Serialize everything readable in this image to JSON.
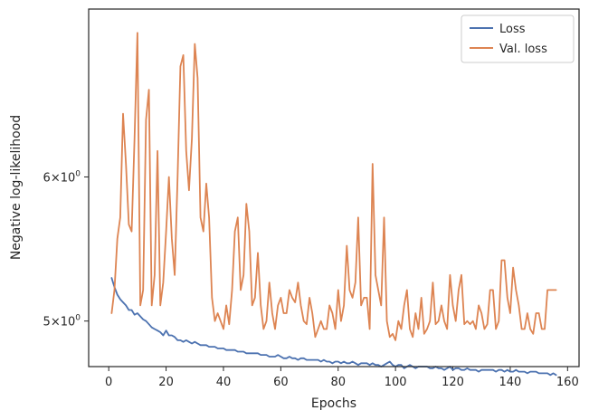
{
  "chart_data": {
    "type": "line",
    "title": "",
    "xlabel": "Epochs",
    "ylabel": "Negative log-likelihood",
    "yscale": "log",
    "xlim": [
      -7,
      164
    ],
    "ylim": [
      4.72,
      7.42
    ],
    "xticks": [
      0,
      20,
      40,
      60,
      80,
      100,
      120,
      140,
      160
    ],
    "yticks": [
      {
        "value": 5,
        "base": "5",
        "mult": "×",
        "ten": "10",
        "exp": "0"
      },
      {
        "value": 6,
        "base": "6",
        "mult": "×",
        "ten": "10",
        "exp": "0"
      }
    ],
    "grid": false,
    "legend_position": "top-right",
    "series": [
      {
        "name": "Loss",
        "color": "#4c72b0",
        "x": [
          1,
          2,
          3,
          4,
          5,
          6,
          7,
          8,
          9,
          10,
          11,
          12,
          13,
          14,
          15,
          16,
          17,
          18,
          19,
          20,
          21,
          22,
          23,
          24,
          25,
          26,
          27,
          28,
          29,
          30,
          31,
          32,
          33,
          34,
          35,
          36,
          37,
          38,
          39,
          40,
          41,
          42,
          43,
          44,
          45,
          46,
          47,
          48,
          49,
          50,
          51,
          52,
          53,
          54,
          55,
          56,
          57,
          58,
          59,
          60,
          61,
          62,
          63,
          64,
          65,
          66,
          67,
          68,
          69,
          70,
          71,
          72,
          73,
          74,
          75,
          76,
          77,
          78,
          79,
          80,
          81,
          82,
          83,
          84,
          85,
          86,
          87,
          88,
          89,
          90,
          91,
          92,
          93,
          94,
          95,
          96,
          97,
          98,
          99,
          100,
          101,
          102,
          103,
          104,
          105,
          106,
          107,
          108,
          109,
          110,
          111,
          112,
          113,
          114,
          115,
          116,
          117,
          118,
          119,
          120,
          121,
          122,
          123,
          124,
          125,
          126,
          127,
          128,
          129,
          130,
          131,
          132,
          133,
          134,
          135,
          136,
          137,
          138,
          139,
          140,
          141,
          142,
          143,
          144,
          145,
          146,
          147,
          148,
          149,
          150,
          151,
          152,
          153,
          154,
          155,
          156
        ],
        "y": [
          5.28,
          5.22,
          5.17,
          5.14,
          5.12,
          5.1,
          5.07,
          5.07,
          5.04,
          5.05,
          5.03,
          5.01,
          5.0,
          4.98,
          4.96,
          4.95,
          4.94,
          4.93,
          4.91,
          4.94,
          4.91,
          4.91,
          4.9,
          4.88,
          4.88,
          4.87,
          4.88,
          4.87,
          4.86,
          4.87,
          4.86,
          4.85,
          4.85,
          4.85,
          4.84,
          4.84,
          4.84,
          4.83,
          4.83,
          4.83,
          4.82,
          4.82,
          4.82,
          4.82,
          4.81,
          4.81,
          4.81,
          4.8,
          4.8,
          4.8,
          4.8,
          4.8,
          4.79,
          4.79,
          4.79,
          4.78,
          4.78,
          4.78,
          4.79,
          4.78,
          4.77,
          4.77,
          4.78,
          4.77,
          4.77,
          4.76,
          4.77,
          4.77,
          4.76,
          4.76,
          4.76,
          4.76,
          4.76,
          4.75,
          4.76,
          4.75,
          4.75,
          4.74,
          4.75,
          4.75,
          4.74,
          4.75,
          4.74,
          4.74,
          4.75,
          4.74,
          4.73,
          4.74,
          4.74,
          4.74,
          4.73,
          4.74,
          4.73,
          4.73,
          4.72,
          4.73,
          4.74,
          4.75,
          4.73,
          4.72,
          4.73,
          4.73,
          4.71,
          4.72,
          4.73,
          4.72,
          4.71,
          4.72,
          4.72,
          4.72,
          4.72,
          4.71,
          4.71,
          4.72,
          4.71,
          4.71,
          4.7,
          4.71,
          4.72,
          4.7,
          4.71,
          4.71,
          4.7,
          4.7,
          4.71,
          4.7,
          4.7,
          4.7,
          4.69,
          4.7,
          4.7,
          4.7,
          4.7,
          4.7,
          4.69,
          4.7,
          4.7,
          4.69,
          4.7,
          4.69,
          4.69,
          4.7,
          4.69,
          4.69,
          4.69,
          4.68,
          4.69,
          4.69,
          4.69,
          4.68,
          4.68,
          4.68,
          4.68,
          4.67,
          4.68,
          4.67
        ],
        "y_note": "",
        "y_display": []
      },
      {
        "name": "Val. loss",
        "color": "#dd8452",
        "x": [
          1,
          2,
          3,
          4,
          5,
          6,
          7,
          8,
          9,
          10,
          11,
          12,
          13,
          14,
          15,
          16,
          17,
          18,
          19,
          20,
          21,
          22,
          23,
          24,
          25,
          26,
          27,
          28,
          29,
          30,
          31,
          32,
          33,
          34,
          35,
          36,
          37,
          38,
          39,
          40,
          41,
          42,
          43,
          44,
          45,
          46,
          47,
          48,
          49,
          50,
          51,
          52,
          53,
          54,
          55,
          56,
          57,
          58,
          59,
          60,
          61,
          62,
          63,
          64,
          65,
          66,
          67,
          68,
          69,
          70,
          71,
          72,
          73,
          74,
          75,
          76,
          77,
          78,
          79,
          80,
          81,
          82,
          83,
          84,
          85,
          86,
          87,
          88,
          89,
          90,
          91,
          92,
          93,
          94,
          95,
          96,
          97,
          98,
          99,
          100,
          101,
          102,
          103,
          104,
          105,
          106,
          107,
          108,
          109,
          110,
          111,
          112,
          113,
          114,
          115,
          116,
          117,
          118,
          119,
          120,
          121,
          122,
          123,
          124,
          125,
          126,
          127,
          128,
          129,
          130,
          131,
          132,
          133,
          134,
          135,
          136,
          137,
          138,
          139,
          140,
          141,
          142,
          143,
          144,
          145,
          146,
          147,
          148,
          149,
          150,
          151,
          152,
          153,
          154,
          155,
          156
        ],
        "y": [
          5.05,
          5.2,
          5.55,
          5.7,
          6.5,
          6.1,
          5.65,
          5.6,
          6.3,
          7.2,
          5.1,
          5.2,
          6.45,
          6.7,
          5.1,
          5.3,
          6.2,
          5.1,
          5.25,
          5.6,
          6.0,
          5.55,
          5.3,
          6.0,
          6.9,
          7.0,
          6.2,
          5.9,
          6.3,
          7.1,
          6.8,
          5.7,
          5.6,
          5.95,
          5.7,
          5.15,
          5.0,
          5.05,
          5.0,
          4.95,
          5.1,
          4.98,
          5.2,
          5.6,
          5.7,
          5.2,
          5.3,
          5.8,
          5.6,
          5.1,
          5.15,
          5.45,
          5.1,
          4.95,
          5.0,
          5.25,
          5.05,
          4.95,
          5.1,
          5.15,
          5.05,
          5.05,
          5.2,
          5.15,
          5.12,
          5.25,
          5.1,
          5.0,
          4.98,
          5.15,
          5.05,
          4.9,
          4.95,
          5.0,
          4.95,
          4.95,
          5.1,
          5.05,
          4.95,
          5.2,
          5.0,
          5.1,
          5.5,
          5.2,
          5.15,
          5.25,
          5.7,
          5.1,
          5.15,
          5.15,
          4.95,
          6.1,
          5.3,
          5.2,
          5.1,
          5.7,
          5.0,
          4.9,
          4.92,
          4.88,
          5.0,
          4.95,
          5.1,
          5.2,
          4.95,
          4.9,
          5.05,
          4.95,
          5.15,
          4.92,
          4.95,
          5.0,
          5.25,
          4.98,
          5.0,
          5.1,
          5.0,
          4.95,
          5.3,
          5.1,
          5.0,
          5.2,
          5.3,
          4.98,
          5.0,
          4.98,
          5.0,
          4.95,
          5.1,
          5.05,
          4.95,
          4.98,
          5.2,
          5.2,
          4.95,
          5.0,
          5.4,
          5.4,
          5.15,
          5.05,
          5.35,
          5.2,
          5.1,
          4.95,
          4.95,
          5.05,
          4.95,
          4.92,
          5.05,
          5.05,
          4.95,
          4.95,
          5.2,
          5.2,
          5.2,
          5.2
        ],
        "y_note": ""
      }
    ]
  }
}
